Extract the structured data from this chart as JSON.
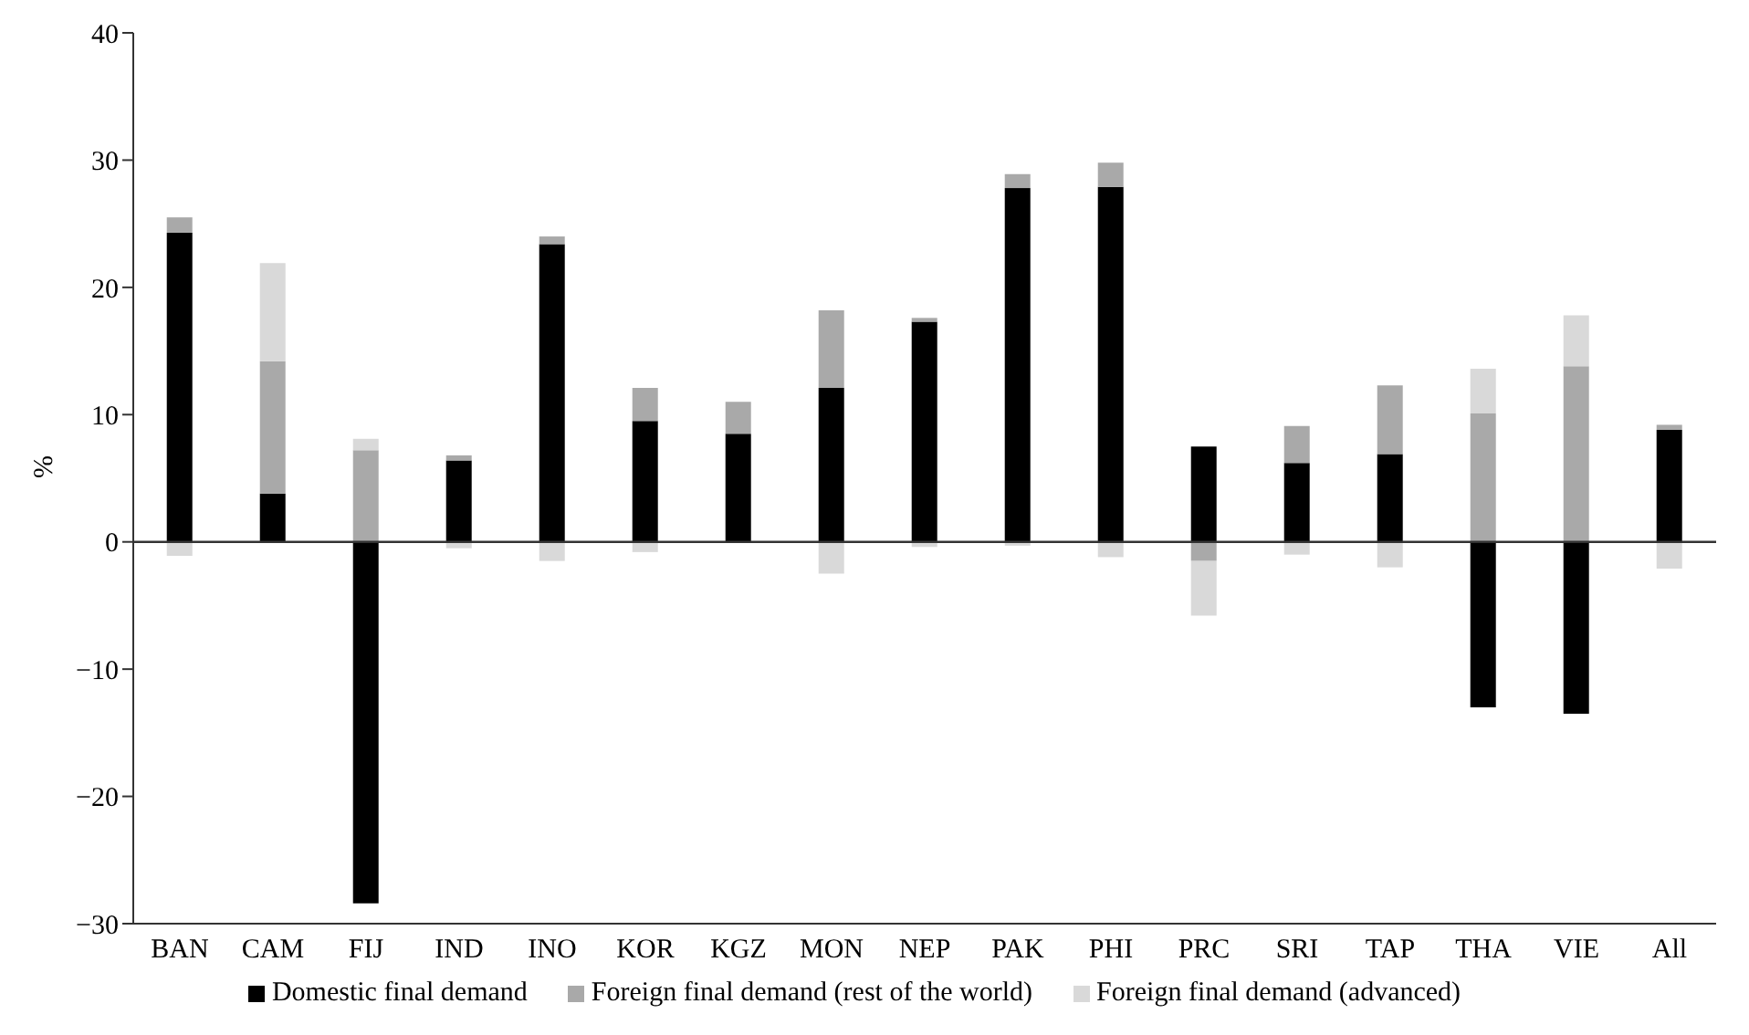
{
  "chart_data": {
    "type": "bar",
    "stacked": true,
    "ylabel": "%",
    "categories": [
      "BAN",
      "CAM",
      "FIJ",
      "IND",
      "INO",
      "KOR",
      "KGZ",
      "MON",
      "NEP",
      "PAK",
      "PHI",
      "PRC",
      "SRI",
      "TAP",
      "THA",
      "VIE",
      "All"
    ],
    "series": [
      {
        "name": "Domestic final demand",
        "color": "#000000",
        "values": [
          24.3,
          3.8,
          -28.4,
          6.4,
          23.4,
          9.5,
          8.5,
          12.1,
          17.3,
          27.8,
          27.9,
          7.5,
          6.2,
          6.9,
          -13.0,
          -13.5,
          8.8
        ]
      },
      {
        "name": "Foreign final demand (rest of the world)",
        "color": "#a9a9a9",
        "values": [
          1.2,
          10.4,
          7.2,
          0.4,
          0.6,
          2.6,
          2.5,
          6.1,
          0.3,
          1.1,
          1.9,
          -1.5,
          2.9,
          5.4,
          10.1,
          13.8,
          0.4
        ]
      },
      {
        "name": "Foreign final demand (advanced)",
        "color": "#d9d9d9",
        "values": [
          -1.1,
          7.7,
          0.9,
          -0.5,
          -1.5,
          -0.8,
          0,
          -2.5,
          -0.4,
          -0.3,
          -1.2,
          -4.3,
          -1.0,
          -2.0,
          3.5,
          4.0,
          -2.1
        ]
      }
    ],
    "ylim": [
      -30,
      40
    ],
    "yticks": [
      -30,
      -20,
      -10,
      0,
      10,
      20,
      30,
      40
    ],
    "ref_lines": [
      {
        "axis": "y",
        "value": 0
      }
    ],
    "grid": false,
    "legend": "bottom"
  }
}
